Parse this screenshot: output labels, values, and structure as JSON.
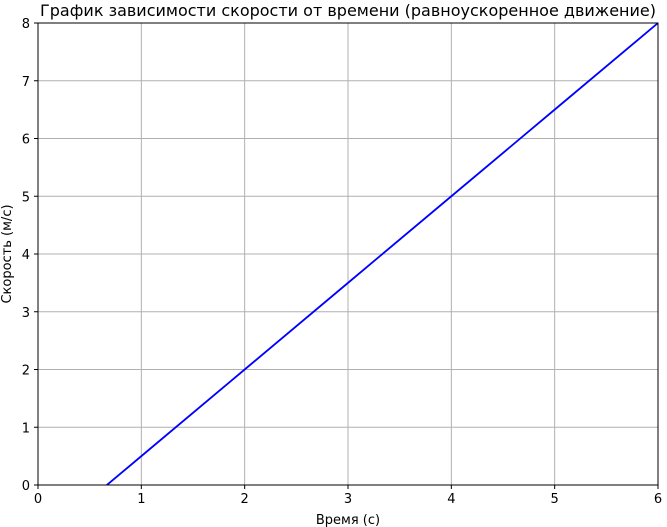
{
  "chart_data": {
    "type": "line",
    "title": "График зависимости скорости от времени (равноускоренное движение)",
    "xlabel": "Время (с)",
    "ylabel": "Скорость (м/с)",
    "xlim": [
      0,
      6
    ],
    "ylim": [
      0,
      8
    ],
    "xticks": [
      "0",
      "1",
      "2",
      "3",
      "4",
      "5",
      "6"
    ],
    "yticks": [
      "0",
      "1",
      "2",
      "3",
      "4",
      "5",
      "6",
      "7",
      "8"
    ],
    "grid": true,
    "series": [
      {
        "color": "#0000ff",
        "x": [
          0,
          1,
          2,
          3,
          4,
          5,
          6
        ],
        "y": [
          -1,
          0.5,
          2,
          3.5,
          5,
          6.5,
          8
        ]
      }
    ]
  }
}
